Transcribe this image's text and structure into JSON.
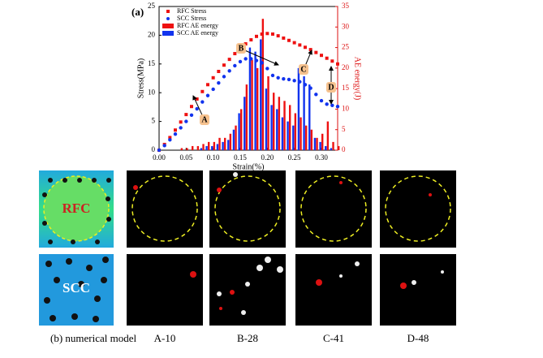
{
  "chart_data": {
    "type": "combo",
    "panel_label": "(a)",
    "x_label": "Strain(%)",
    "y_label": "Stress(MPa)",
    "y2_label": "AE energy(J)",
    "xlim": [
      0,
      0.33
    ],
    "ylim": [
      0,
      25
    ],
    "y2lim": [
      0,
      35
    ],
    "xticks": [
      {
        "value": 0,
        "label": "0.00"
      },
      {
        "value": 0.05,
        "label": "0.05"
      },
      {
        "value": 0.1,
        "label": "0.10"
      },
      {
        "value": 0.15,
        "label": "0.15"
      },
      {
        "value": 0.2,
        "label": "0.20"
      },
      {
        "value": 0.25,
        "label": "0.25"
      },
      {
        "value": 0.3,
        "label": "0.30"
      }
    ],
    "yticks": [
      0,
      5,
      10,
      15,
      20,
      25
    ],
    "y2ticks": [
      0,
      5,
      10,
      15,
      20,
      25,
      30,
      35
    ],
    "x": [
      0,
      0.01,
      0.02,
      0.03,
      0.04,
      0.05,
      0.06,
      0.07,
      0.08,
      0.09,
      0.1,
      0.11,
      0.12,
      0.13,
      0.14,
      0.15,
      0.16,
      0.17,
      0.18,
      0.19,
      0.2,
      0.21,
      0.22,
      0.23,
      0.24,
      0.25,
      0.26,
      0.27,
      0.28,
      0.29,
      0.3,
      0.31,
      0.32,
      0.33
    ],
    "legend": "upper left",
    "series": [
      {
        "name": "RFC Stress",
        "type": "line",
        "marker": "square",
        "color": "#ee1111",
        "values": [
          0,
          1,
          2.2,
          3.5,
          4.9,
          6.2,
          7.6,
          8.9,
          10.2,
          11.4,
          12.6,
          13.7,
          14.8,
          15.8,
          16.8,
          17.7,
          18.5,
          19.2,
          19.8,
          20.2,
          20.3,
          20.2,
          19.9,
          19.5,
          19.1,
          18.7,
          18.3,
          17.9,
          17.5,
          17.0,
          16.5,
          16.0,
          15.5,
          15.0
        ]
      },
      {
        "name": "SCC Stress",
        "type": "line",
        "marker": "circle",
        "color": "#1133ee",
        "values": [
          0,
          0.8,
          1.8,
          2.8,
          3.9,
          5.0,
          6.1,
          7.2,
          8.4,
          9.5,
          10.6,
          11.7,
          12.8,
          13.8,
          14.7,
          15.4,
          15.9,
          15.9,
          15.6,
          15.2,
          14.2,
          13.0,
          12.6,
          12.4,
          12.3,
          12.1,
          11.9,
          11.4,
          10.8,
          9.7,
          8.6,
          8.0,
          7.8,
          7.6
        ]
      },
      {
        "name": "RFC AE energy",
        "type": "bar",
        "axis": "y2",
        "color": "#ee1111",
        "values": [
          0,
          0,
          0,
          0,
          0.5,
          0.5,
          1,
          1,
          1.5,
          2,
          2,
          3,
          3,
          4,
          6,
          10,
          16,
          22,
          20,
          32,
          18,
          14,
          13,
          12,
          11,
          9,
          8,
          6,
          5,
          3,
          4,
          7,
          2,
          1
        ]
      },
      {
        "name": "SCC AE energy",
        "type": "bar",
        "axis": "y2",
        "color": "#1133ee",
        "values": [
          0,
          0,
          0,
          0,
          0,
          0,
          0,
          0,
          0.5,
          1,
          1,
          1.5,
          2,
          2.5,
          5,
          9,
          13,
          25,
          24,
          27,
          15,
          11,
          10,
          8,
          7,
          6,
          20,
          18,
          16,
          3,
          2,
          1,
          0.5,
          0
        ]
      }
    ],
    "annotations": [
      "A",
      "B",
      "C",
      "D"
    ]
  },
  "panel_b": {
    "label": "(b) numerical model",
    "rows": [
      "RFC",
      "SCC"
    ],
    "columns": [
      "A-10",
      "B-28",
      "C-41",
      "D-48"
    ]
  }
}
